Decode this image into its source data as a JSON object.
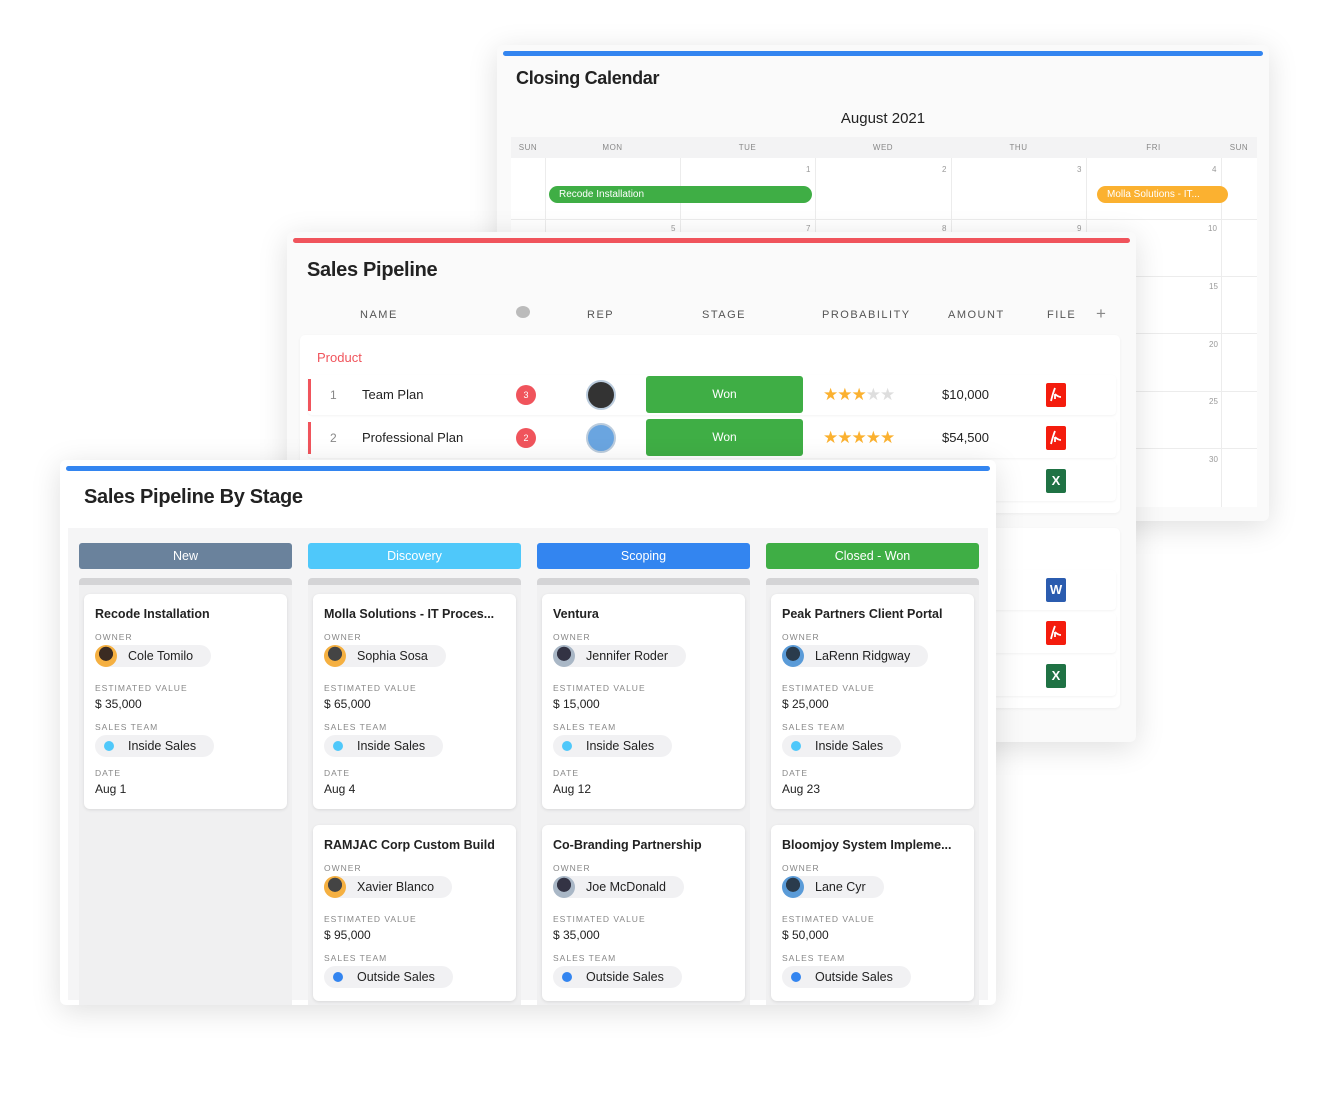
{
  "colors": {
    "blue": "#3385f0",
    "red": "#f0545c",
    "green": "#3fae45",
    "orange": "#fbb130",
    "new": "#6a829c",
    "discovery": "#4fc8fa",
    "star": "#fbb130",
    "star_empty": "#dedede",
    "inside_sales": "#4fc8fa",
    "outside_sales": "#3385f0"
  },
  "calendar": {
    "title": "Closing Calendar",
    "month": "August 2021",
    "days": [
      "SUN",
      "MON",
      "TUE",
      "WED",
      "THU",
      "FRI",
      "SUN"
    ],
    "row1_dates": [
      "1",
      "2",
      "3",
      "4"
    ],
    "row2_dates": [
      "5",
      "7",
      "8",
      "9",
      "10"
    ],
    "right_dates": [
      "15",
      "20",
      "25",
      "30"
    ],
    "events": [
      {
        "label": "Recode Installation",
        "color": "#3fae45"
      },
      {
        "label": "Molla Solutions - IT...",
        "color": "#fbb130"
      }
    ]
  },
  "pipeline": {
    "title": "Sales Pipeline",
    "columns": {
      "name": "NAME",
      "rep": "REP",
      "stage": "STAGE",
      "probability": "PROBABILITY",
      "amount": "AMOUNT",
      "file": "FILE"
    },
    "group": "Product",
    "rows": [
      {
        "num": "1",
        "name": "Team Plan",
        "comments": "3",
        "stage": "Won",
        "stars": 3,
        "amount": "$10,000",
        "file": "pdf-icon"
      },
      {
        "num": "2",
        "name": "Professional Plan",
        "comments": "2",
        "stage": "Won",
        "stars": 5,
        "amount": "$54,500",
        "file": "pdf-icon"
      }
    ],
    "extra_files": [
      "excel-icon",
      "word-icon",
      "pdf-icon",
      "excel-icon"
    ],
    "file_glyphs": {
      "pdf": "⅄",
      "excel": "X",
      "word": "W"
    }
  },
  "stage": {
    "title": "Sales Pipeline By Stage",
    "labels": {
      "owner": "OWNER",
      "value": "ESTIMATED VALUE",
      "team": "SALES TEAM",
      "date": "DATE"
    },
    "columns": [
      {
        "name": "New",
        "color": "#6a829c",
        "cards": [
          {
            "title": "Recode Installation",
            "owner": "Cole Tomilo",
            "value": "$ 35,000",
            "team": "Inside Sales",
            "date": "Aug 1"
          }
        ]
      },
      {
        "name": "Discovery",
        "color": "#4fc8fa",
        "cards": [
          {
            "title": "Molla Solutions - IT Proces...",
            "owner": "Sophia Sosa",
            "value": "$ 65,000",
            "team": "Inside Sales",
            "date": "Aug 4"
          },
          {
            "title": "RAMJAC Corp Custom Build",
            "owner": "Xavier Blanco",
            "value": "$ 95,000",
            "team": "Outside Sales"
          }
        ]
      },
      {
        "name": "Scoping",
        "color": "#3385f0",
        "cards": [
          {
            "title": "Ventura",
            "owner": "Jennifer Roder",
            "value": "$ 15,000",
            "team": "Inside Sales",
            "date": "Aug 12"
          },
          {
            "title": "Co-Branding Partnership",
            "owner": "Joe McDonald",
            "value": "$ 35,000",
            "team": "Outside Sales"
          }
        ]
      },
      {
        "name": "Closed - Won",
        "color": "#3fae45",
        "cards": [
          {
            "title": "Peak Partners Client Portal",
            "owner": "LaRenn Ridgway",
            "value": "$ 25,000",
            "team": "Inside Sales",
            "date": "Aug 23"
          },
          {
            "title": "Bloomjoy System Impleme...",
            "owner": "Lane Cyr",
            "value": "$ 50,000",
            "team": "Outside Sales"
          }
        ]
      }
    ]
  }
}
